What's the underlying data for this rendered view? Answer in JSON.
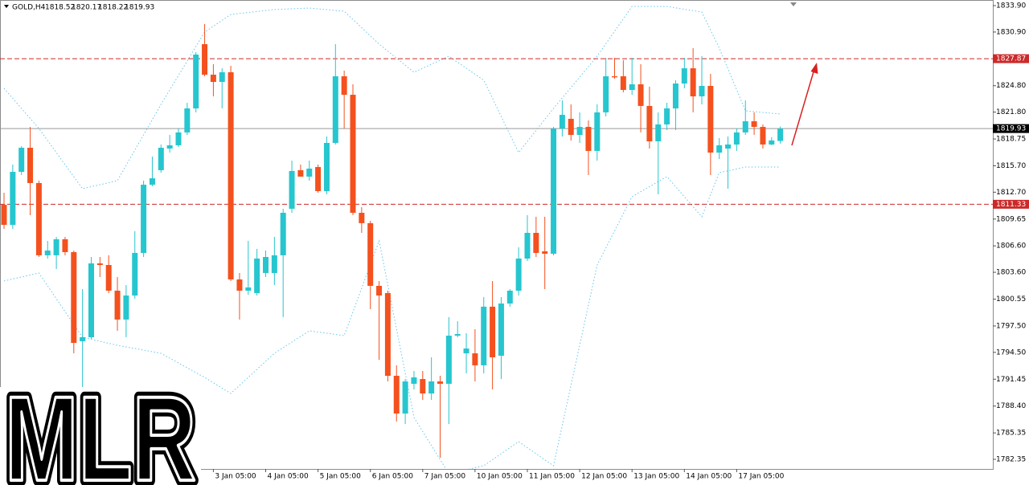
{
  "chart_data": {
    "type": "candlestick",
    "symbol": "GOLD,H4",
    "watermark": "MLR",
    "up_color": "#26c6cf",
    "down_color": "#f4511e",
    "band_color": "#66c6ee",
    "level_color": "#cc2a2a",
    "price_line_color": "#999999",
    "ylim": [
      1782.35,
      1833.9
    ],
    "yticks": [
      {
        "value": 1833.9,
        "label": "1833.90"
      },
      {
        "value": 1830.9,
        "label": "1830.90"
      },
      {
        "value": 1824.8,
        "label": "1824.80"
      },
      {
        "value": 1821.8,
        "label": "1821.80"
      },
      1818.75,
      {
        "value": 1815.7,
        "label": "1815.70"
      },
      {
        "value": 1812.7,
        "label": "1812.70"
      },
      1809.65,
      {
        "value": 1806.6,
        "label": "1806.60"
      },
      {
        "value": 1803.6,
        "label": "1803.60"
      },
      1800.55,
      {
        "value": 1797.5,
        "label": "1797.50"
      },
      {
        "value": 1794.5,
        "label": "1794.50"
      },
      1791.45,
      {
        "value": 1788.4,
        "label": "1788.40"
      },
      1785.35,
      1782.35
    ],
    "xlabels": [
      {
        "index": 24,
        "label": "3 Jan 05:00"
      },
      {
        "index": 30,
        "label": "4 Jan 05:00"
      },
      {
        "index": 36,
        "label": "5 Jan 05:00"
      },
      {
        "index": 42,
        "label": "6 Jan 05:00"
      },
      {
        "index": 48,
        "label": "7 Jan 05:00"
      },
      {
        "index": 54,
        "label": "10 Jan 05:00"
      },
      {
        "index": 60,
        "label": "11 Jan 05:00"
      },
      {
        "index": 66,
        "label": "12 Jan 05:00"
      },
      {
        "index": 72,
        "label": "13 Jan 05:00"
      },
      {
        "index": 78,
        "label": "14 Jan 05:00"
      },
      {
        "index": 84,
        "label": "17 Jan 05:00"
      }
    ],
    "levels": [
      1827.87,
      1811.33
    ],
    "ohlc": [
      [
        1811.27,
        1812.64,
        1808.54,
        1808.99
      ],
      [
        1808.99,
        1815.84,
        1808.54,
        1815.01
      ],
      [
        1815.01,
        1817.93,
        1814.65,
        1817.75
      ],
      [
        1817.75,
        1820.12,
        1810.09,
        1813.74
      ],
      [
        1813.74,
        1814.01,
        1805.34,
        1805.53
      ],
      [
        1805.53,
        1807.17,
        1805.16,
        1806.07
      ],
      [
        1805.53,
        1807.62,
        1803.97,
        1807.35
      ],
      [
        1807.35,
        1807.62,
        1805.53,
        1805.89
      ],
      [
        1805.89,
        1806.07,
        1794.39,
        1795.58
      ],
      [
        1795.76,
        1801.69,
        1787.1,
        1796.22
      ],
      [
        1796.22,
        1805.34,
        1796.04,
        1804.61
      ],
      [
        1804.61,
        1805.34,
        1803.06,
        1804.43
      ],
      [
        1804.43,
        1805.53,
        1801.24,
        1801.51
      ],
      [
        1801.51,
        1803.06,
        1796.95,
        1798.23
      ],
      [
        1798.23,
        1802.15,
        1796.22,
        1800.96
      ],
      [
        1800.96,
        1808.26,
        1800.6,
        1805.8
      ],
      [
        1805.8,
        1814.01,
        1805.34,
        1813.55
      ],
      [
        1813.55,
        1816.75,
        1813.37,
        1814.28
      ],
      [
        1815.2,
        1818.12,
        1814.92,
        1817.75
      ],
      [
        1817.66,
        1819.21,
        1817.2,
        1818.03
      ],
      [
        1818.03,
        1819.94,
        1817.84,
        1819.49
      ],
      [
        1819.49,
        1822.86,
        1819.21,
        1822.22
      ],
      [
        1822.22,
        1828.61,
        1821.77,
        1828.34
      ],
      [
        1829.52,
        1831.8,
        1825.87,
        1826.05
      ],
      [
        1826.05,
        1827.24,
        1823.59,
        1825.23
      ],
      [
        1825.23,
        1826.78,
        1822.22,
        1826.33
      ],
      [
        1826.33,
        1827.06,
        1802.61,
        1802.79
      ],
      [
        1802.79,
        1803.52,
        1798.23,
        1801.51
      ],
      [
        1801.51,
        1807.17,
        1801.05,
        1801.88
      ],
      [
        1801.24,
        1806.26,
        1800.96,
        1805.16
      ],
      [
        1803.52,
        1806.07,
        1803.06,
        1805.34
      ],
      [
        1803.52,
        1807.62,
        1802.15,
        1805.53
      ],
      [
        1805.53,
        1810.82,
        1798.5,
        1810.36
      ],
      [
        1810.82,
        1816.29,
        1810.36,
        1815.11
      ],
      [
        1815.2,
        1815.84,
        1814.47,
        1814.47
      ],
      [
        1814.47,
        1816.29,
        1814.01,
        1815.38
      ],
      [
        1815.56,
        1815.84,
        1812.64,
        1812.82
      ],
      [
        1812.82,
        1819.03,
        1812.46,
        1818.3
      ],
      [
        1818.3,
        1829.52,
        1818.12,
        1825.87
      ],
      [
        1825.87,
        1826.51,
        1819.94,
        1823.77
      ],
      [
        1823.77,
        1824.96,
        1810.09,
        1810.36
      ],
      [
        1810.36,
        1811.0,
        1808.08,
        1809.18
      ],
      [
        1809.18,
        1809.45,
        1799.41,
        1802.06
      ],
      [
        1802.06,
        1802.61,
        1793.66,
        1800.96
      ],
      [
        1801.24,
        1801.51,
        1791.2,
        1791.84
      ],
      [
        1791.84,
        1793.03,
        1786.64,
        1787.55
      ],
      [
        1787.55,
        1791.47,
        1786.37,
        1791.2
      ],
      [
        1790.93,
        1792.39,
        1790.29,
        1791.66
      ],
      [
        1791.47,
        1792.39,
        1789.1,
        1789.83
      ],
      [
        1789.83,
        1793.94,
        1789.1,
        1791.2
      ],
      [
        1791.2,
        1791.84,
        1782.53,
        1790.93
      ],
      [
        1790.93,
        1798.5,
        1786.37,
        1796.4
      ],
      [
        1796.4,
        1798.04,
        1796.22,
        1796.58
      ],
      [
        1794.39,
        1796.68,
        1792.11,
        1794.94
      ],
      [
        1794.39,
        1797.13,
        1791.2,
        1793.03
      ],
      [
        1793.03,
        1800.78,
        1792.11,
        1799.69
      ],
      [
        1799.69,
        1802.61,
        1790.29,
        1793.94
      ],
      [
        1794.12,
        1800.78,
        1791.47,
        1800.05
      ],
      [
        1800.05,
        1801.69,
        1799.69,
        1801.51
      ],
      [
        1801.51,
        1806.44,
        1800.96,
        1805.16
      ],
      [
        1805.16,
        1810.09,
        1804.89,
        1808.08
      ],
      [
        1808.08,
        1809.91,
        1805.34,
        1805.8
      ],
      [
        1805.98,
        1809.91,
        1801.69,
        1805.71
      ],
      [
        1805.71,
        1820.12,
        1805.53,
        1819.94
      ],
      [
        1819.94,
        1823.13,
        1819.03,
        1821.49
      ],
      [
        1821.04,
        1822.68,
        1818.57,
        1819.21
      ],
      [
        1819.21,
        1821.77,
        1818.3,
        1820.12
      ],
      [
        1820.12,
        1820.85,
        1814.65,
        1817.39
      ],
      [
        1817.39,
        1822.68,
        1816.29,
        1821.77
      ],
      [
        1821.77,
        1827.97,
        1821.31,
        1825.87
      ],
      [
        1825.87,
        1827.97,
        1825.6,
        1825.75
      ],
      [
        1825.87,
        1827.7,
        1824.05,
        1824.32
      ],
      [
        1824.32,
        1827.97,
        1823.77,
        1824.96
      ],
      [
        1824.96,
        1827.24,
        1819.49,
        1822.5
      ],
      [
        1822.5,
        1824.69,
        1817.66,
        1818.48
      ],
      [
        1818.48,
        1821.77,
        1812.46,
        1820.4
      ],
      [
        1820.4,
        1822.86,
        1819.76,
        1822.22
      ],
      [
        1822.22,
        1825.42,
        1819.76,
        1825.05
      ],
      [
        1825.05,
        1827.97,
        1824.5,
        1826.78
      ],
      [
        1826.78,
        1829.07,
        1821.77,
        1823.59
      ],
      [
        1823.59,
        1828.15,
        1822.68,
        1824.78
      ],
      [
        1824.78,
        1826.15,
        1814.65,
        1817.2
      ],
      [
        1817.2,
        1818.85,
        1816.47,
        1818.03
      ],
      [
        1817.66,
        1819.03,
        1813.1,
        1818.12
      ],
      [
        1818.12,
        1819.94,
        1817.39,
        1819.49
      ],
      [
        1819.49,
        1823.13,
        1819.21,
        1820.76
      ],
      [
        1820.76,
        1821.77,
        1819.21,
        1820.12
      ],
      [
        1820.12,
        1820.4,
        1817.66,
        1818.12
      ],
      [
        1818.12,
        1818.94,
        1818.05,
        1818.58
      ],
      [
        1818.52,
        1820.17,
        1818.22,
        1819.93
      ]
    ],
    "bands": {
      "x": [
        0,
        4,
        9,
        13,
        18,
        23,
        26,
        31,
        35,
        39,
        43,
        47,
        51,
        55,
        59,
        63,
        68,
        72,
        76,
        80,
        82,
        85,
        89
      ],
      "upper": [
        1824.5,
        1819.94,
        1813.1,
        1814.01,
        1822.68,
        1830.89,
        1832.9,
        1833.45,
        1833.63,
        1833.26,
        1829.52,
        1826.33,
        1828.15,
        1825.42,
        1817.2,
        1822.22,
        1828.15,
        1833.81,
        1833.81,
        1833.17,
        1829.07,
        1821.95,
        1821.58
      ],
      "lower": [
        1802.61,
        1803.52,
        1796.22,
        1795.31,
        1794.39,
        1791.66,
        1789.83,
        1794.39,
        1796.95,
        1796.4,
        1807.17,
        1787.1,
        1780.71,
        1781.62,
        1784.36,
        1781.62,
        1804.43,
        1812.19,
        1814.47,
        1809.91,
        1814.92,
        1815.56,
        1815.56
      ]
    }
  }
}
